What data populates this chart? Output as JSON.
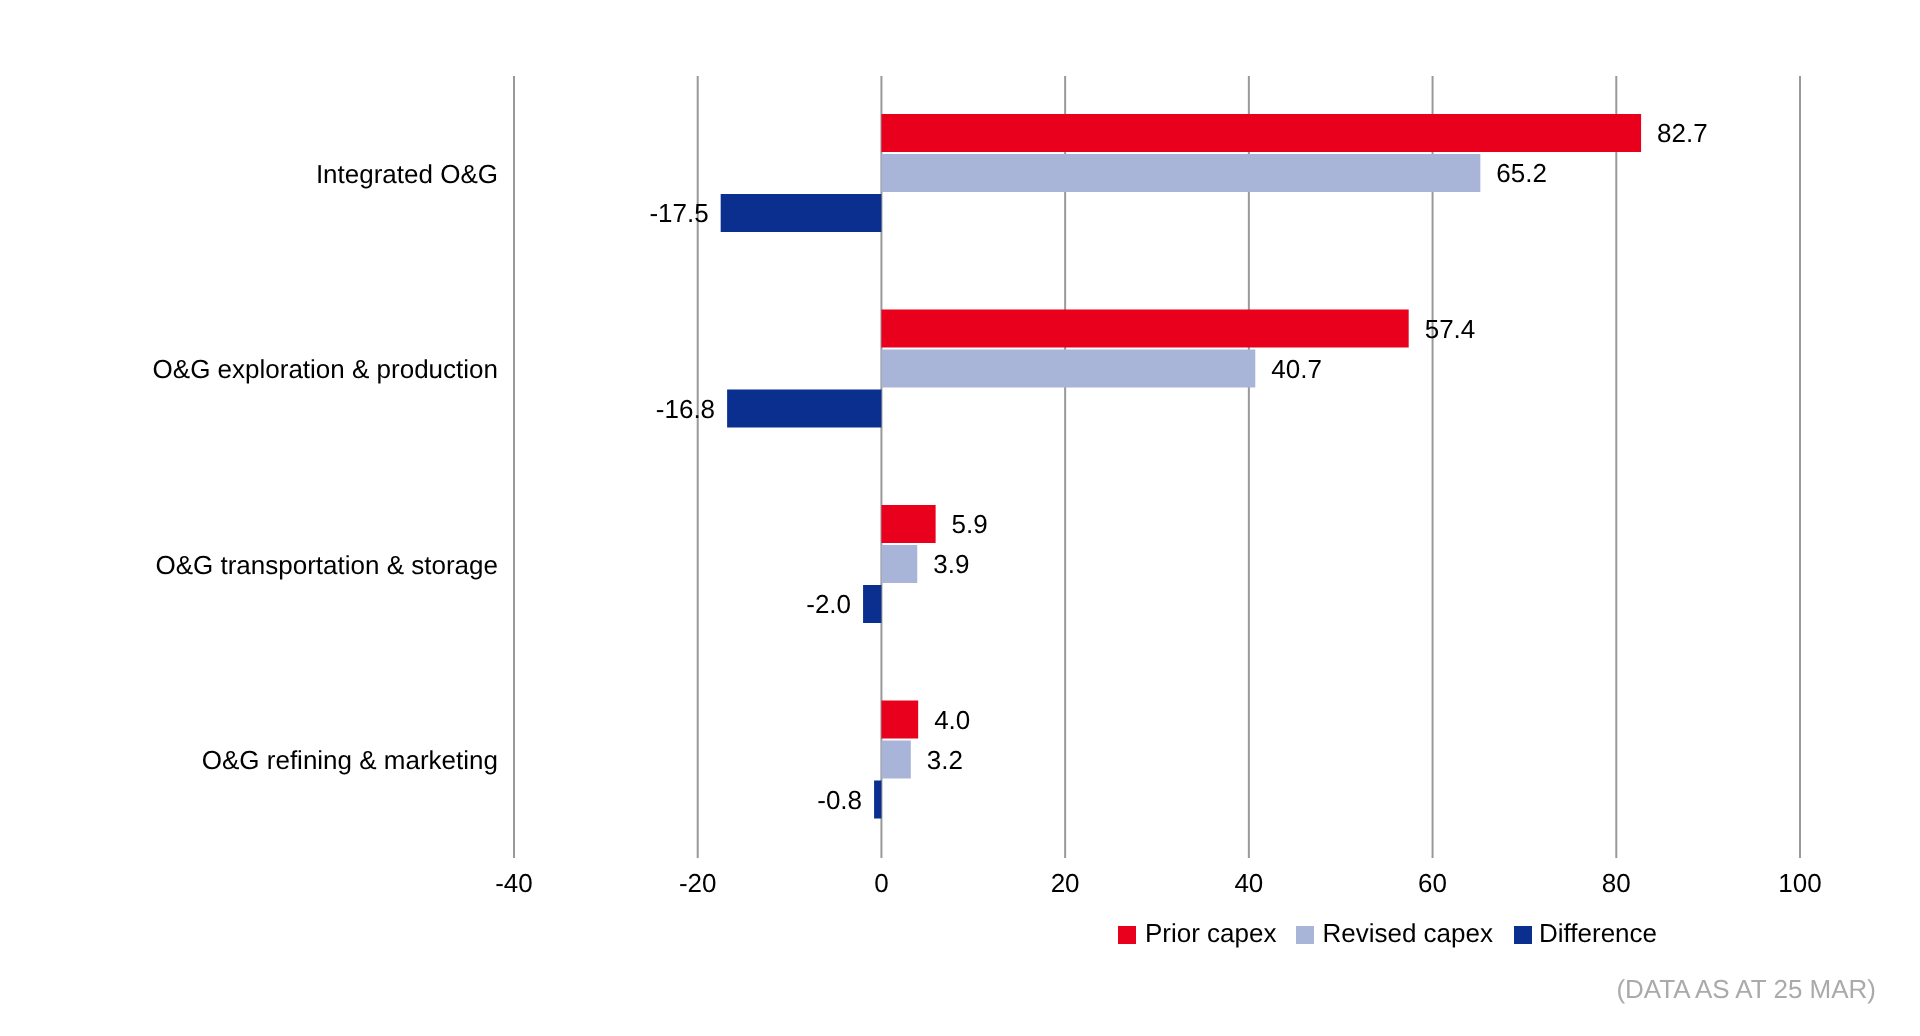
{
  "chart_data": {
    "type": "bar",
    "orientation": "horizontal",
    "categories": [
      "Integrated O&G",
      "O&G exploration & production",
      "O&G transportation & storage",
      "O&G refining & marketing"
    ],
    "series": [
      {
        "name": "Prior capex",
        "color": "#e8001c",
        "values": [
          82.7,
          57.4,
          5.9,
          4.0
        ],
        "value_labels": [
          "82.7",
          "57.4",
          "5.9",
          "4.0"
        ]
      },
      {
        "name": "Revised capex",
        "color": "#a9b4d9",
        "values": [
          65.2,
          40.7,
          3.9,
          3.2
        ],
        "value_labels": [
          "65.2",
          "40.7",
          "3.9",
          "3.2"
        ]
      },
      {
        "name": "Difference",
        "color": "#0b2f8f",
        "values": [
          -17.5,
          -16.8,
          -2.0,
          -0.8
        ],
        "value_labels": [
          "-17.5",
          "-16.8",
          "-2.0",
          "-0.8"
        ]
      }
    ],
    "xlim": [
      -40,
      100
    ],
    "xticks": [
      -40,
      -20,
      0,
      20,
      40,
      60,
      80,
      100
    ],
    "grid": "x",
    "legend": "bottom",
    "annotations": [
      "(DATA AS AT 25 MAR)"
    ]
  }
}
